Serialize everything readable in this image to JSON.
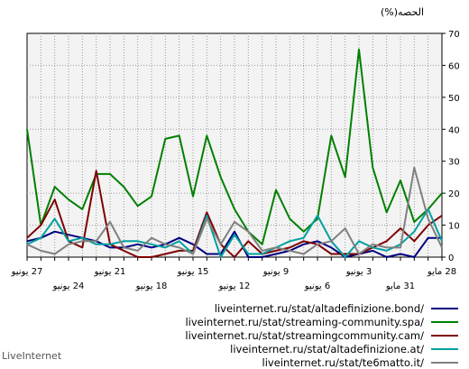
{
  "brand": "LiveInternet",
  "chart_data": {
    "type": "line",
    "ylabel": "الحصه(%)",
    "ylim": [
      0,
      70
    ],
    "yticks": [
      0,
      10,
      20,
      30,
      40,
      50,
      60,
      70
    ],
    "grid": true,
    "legend_position": "bottom-right",
    "x_tick_labels": [
      {
        "index": 0,
        "label": "28 مايو",
        "row": 1
      },
      {
        "index": 3,
        "label": "31 مايو",
        "row": 2
      },
      {
        "index": 6,
        "label": "3 يونيو",
        "row": 1
      },
      {
        "index": 9,
        "label": "6 يونيو",
        "row": 2
      },
      {
        "index": 12,
        "label": "9 يونيو",
        "row": 1
      },
      {
        "index": 15,
        "label": "12 يونيو",
        "row": 2
      },
      {
        "index": 18,
        "label": "15 يونيو",
        "row": 1
      },
      {
        "index": 21,
        "label": "18 يونيو",
        "row": 2
      },
      {
        "index": 24,
        "label": "21 يونيو",
        "row": 1
      },
      {
        "index": 27,
        "label": "24 يونيو",
        "row": 2
      },
      {
        "index": 30,
        "label": "27 يونيو",
        "row": 1
      }
    ],
    "series": [
      {
        "name": "liveinternet.ru/stat/altadefinizione.bond/",
        "color": "#00007f",
        "values": [
          6,
          6,
          0,
          1,
          0,
          2,
          1,
          0,
          3,
          5,
          4,
          2,
          1,
          0,
          0,
          8,
          1,
          1,
          4,
          6,
          4,
          3,
          4,
          3,
          3,
          5,
          6,
          7,
          8,
          6,
          5
        ]
      },
      {
        "name": "liveinternet.ru/stat/streaming-community.spa/",
        "color": "#008000",
        "values": [
          20,
          15,
          11,
          24,
          14,
          28,
          65,
          25,
          38,
          12,
          8,
          12,
          21,
          4,
          8,
          15,
          25,
          38,
          19,
          38,
          37,
          19,
          16,
          22,
          26,
          26,
          15,
          18,
          22,
          10,
          40
        ]
      },
      {
        "name": "liveinternet.ru/stat/streamingcommunity.cam/",
        "color": "#7f0000",
        "values": [
          13,
          10,
          5,
          9,
          5,
          3,
          1,
          1,
          1,
          4,
          5,
          3,
          2,
          1,
          5,
          0,
          4,
          14,
          2,
          2,
          1,
          0,
          0,
          2,
          4,
          27,
          3,
          5,
          18,
          10,
          6
        ]
      },
      {
        "name": "liveinternet.ru/stat/altadefinizione.at/",
        "color": "#00a0a0",
        "values": [
          5,
          15,
          8,
          4,
          2,
          3,
          5,
          0,
          5,
          13,
          6,
          5,
          3,
          1,
          1,
          7,
          0,
          13,
          1,
          5,
          3,
          4,
          5,
          5,
          4,
          4,
          6,
          5,
          12,
          6,
          4
        ]
      },
      {
        "name": "liveinternet.ru/stat/te6matto.it/",
        "color": "#808080",
        "values": [
          3,
          12,
          28,
          3,
          3,
          4,
          1,
          9,
          5,
          4,
          1,
          2,
          3,
          2,
          8,
          11,
          4,
          12,
          1,
          3,
          4,
          6,
          2,
          3,
          11,
          5,
          5,
          4,
          1,
          2,
          4
        ]
      }
    ]
  }
}
